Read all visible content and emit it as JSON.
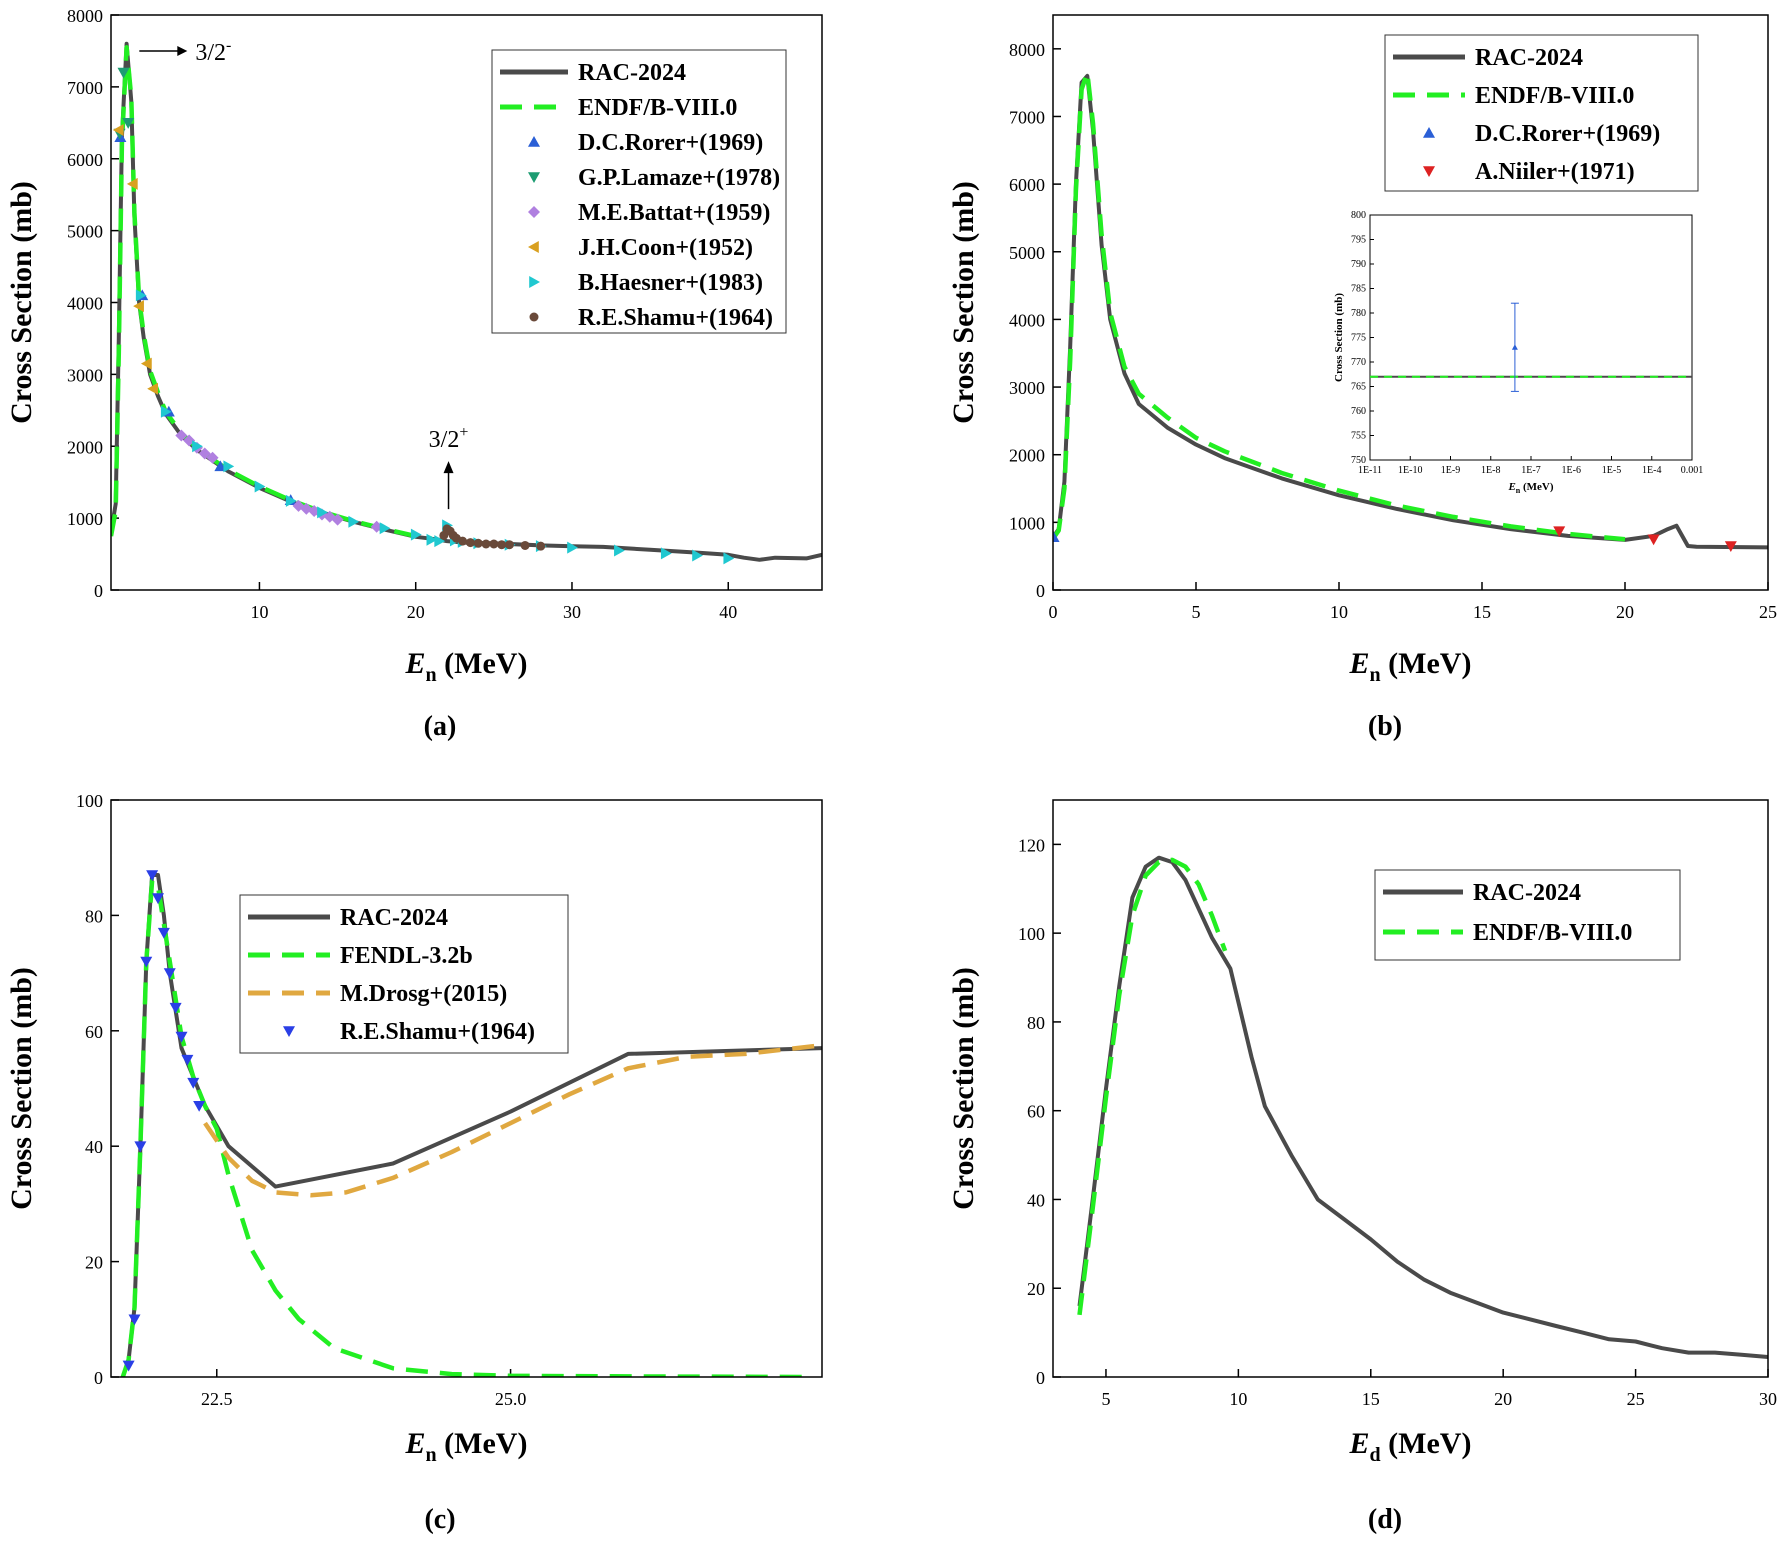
{
  "chart_data": [
    {
      "id": "a",
      "type": "line",
      "panel_label": "(a)",
      "xlabel_main": "E",
      "xlabel_sub": "n",
      "xlabel_unit": " (MeV)",
      "ylabel": "Cross Section (mb)",
      "xlim": [
        0.5,
        46
      ],
      "ylim": [
        0,
        8000
      ],
      "xticks": [
        10,
        20,
        30,
        40
      ],
      "yticks": [
        0,
        1000,
        2000,
        3000,
        4000,
        5000,
        6000,
        7000,
        8000
      ],
      "annotations": [
        {
          "text": "3/2",
          "sup": "-",
          "x": 1.8,
          "y": 7500
        },
        {
          "text": "3/2",
          "sup": "+",
          "x": 22.1,
          "y": 1960
        }
      ],
      "series": [
        {
          "name": "RAC-2024",
          "style": "solid",
          "color": "#4a4a4a",
          "x": [
            0.5,
            0.8,
            1.0,
            1.2,
            1.5,
            1.8,
            2.0,
            2.3,
            2.6,
            3.0,
            3.5,
            4.0,
            5.0,
            6.0,
            7.0,
            8.0,
            10.0,
            12.0,
            14.0,
            16.0,
            18.0,
            20.0,
            21.5,
            22.0,
            22.5,
            23.0,
            25.0,
            28.0,
            30.0,
            32.0,
            35.0,
            38.0,
            40.0,
            41.0,
            42.0,
            43.0,
            45.0,
            46.0
          ],
          "y": [
            800,
            1200,
            3500,
            6300,
            7600,
            6800,
            5200,
            4000,
            3500,
            3000,
            2700,
            2450,
            2150,
            1950,
            1800,
            1650,
            1420,
            1230,
            1080,
            950,
            840,
            740,
            700,
            680,
            670,
            660,
            650,
            620,
            610,
            600,
            560,
            520,
            490,
            450,
            420,
            450,
            440,
            490
          ]
        },
        {
          "name": "ENDF/B-VIII.0",
          "style": "dash",
          "color": "#22ee22",
          "x": [
            0.5,
            0.8,
            1.0,
            1.2,
            1.5,
            1.8,
            2.0,
            2.3,
            2.6,
            3.0,
            3.5,
            4.0,
            5.0,
            6.0,
            7.0,
            8.0,
            10.0,
            12.0,
            14.0,
            16.0,
            18.0,
            20.0,
            21.0
          ],
          "y": [
            750,
            1100,
            3300,
            6200,
            7550,
            6850,
            5250,
            4050,
            3550,
            3050,
            2750,
            2480,
            2180,
            1980,
            1820,
            1670,
            1440,
            1250,
            1090,
            960,
            850,
            750,
            720
          ]
        }
      ],
      "points": [
        {
          "name": "D.C.Rorer+(1969)",
          "marker": "triangle-up",
          "color": "#2a5fd6",
          "x": [
            1.1,
            2.5,
            4.2,
            7.5,
            12.0
          ],
          "y": [
            6300,
            4100,
            2480,
            1720,
            1250
          ]
        },
        {
          "name": "G.P.Lamaze+(1978)",
          "marker": "triangle-down",
          "color": "#1d9c72",
          "x": [
            1.05,
            1.3,
            1.6
          ],
          "y": [
            6350,
            7200,
            6500
          ]
        },
        {
          "name": "M.E.Battat+(1959)",
          "marker": "diamond",
          "color": "#b080e0",
          "x": [
            5.0,
            5.5,
            6.0,
            6.5,
            7.0,
            12.5,
            13.0,
            13.5,
            14.0,
            14.5,
            15.0,
            17.5
          ],
          "y": [
            2150,
            2080,
            1980,
            1900,
            1840,
            1170,
            1130,
            1100,
            1050,
            1020,
            980,
            880
          ]
        },
        {
          "name": "J.H.Coon+(1952)",
          "marker": "triangle-left",
          "color": "#d9a020",
          "x": [
            1.0,
            1.9,
            2.3,
            2.8,
            3.2
          ],
          "y": [
            6400,
            5650,
            3950,
            3150,
            2800
          ]
        },
        {
          "name": "B.Haesner+(1983)",
          "marker": "triangle-right",
          "color": "#20c8d0",
          "x": [
            2.4,
            4.0,
            6.0,
            8.0,
            10.0,
            12.0,
            14.0,
            16.0,
            18.0,
            20.0,
            21.0,
            21.5,
            22.0,
            22.5,
            23.0,
            24.0,
            26.0,
            28.0,
            30.0,
            33.0,
            36.0,
            38.0,
            40.0
          ],
          "y": [
            4100,
            2480,
            2000,
            1720,
            1440,
            1240,
            1080,
            950,
            860,
            770,
            700,
            680,
            900,
            690,
            670,
            650,
            630,
            610,
            590,
            550,
            510,
            480,
            440
          ]
        },
        {
          "name": "R.E.Shamu+(1964)",
          "marker": "circle",
          "color": "#6a4a3a",
          "x": [
            21.8,
            22.0,
            22.2,
            22.4,
            22.6,
            23.0,
            23.5,
            24.0,
            24.5,
            25.0,
            25.5,
            26.0,
            27.0,
            28.0
          ],
          "y": [
            760,
            850,
            820,
            760,
            720,
            680,
            660,
            650,
            640,
            640,
            630,
            630,
            620,
            610
          ]
        }
      ]
    },
    {
      "id": "b",
      "type": "line",
      "panel_label": "(b)",
      "xlabel_main": "E",
      "xlabel_sub": "n",
      "xlabel_unit": " (MeV)",
      "ylabel": "Cross Section (mb)",
      "xlim": [
        0,
        25
      ],
      "ylim": [
        0,
        8500
      ],
      "xticks": [
        0,
        5,
        10,
        15,
        20,
        25
      ],
      "yticks": [
        0,
        1000,
        2000,
        3000,
        4000,
        5000,
        6000,
        7000,
        8000
      ],
      "series": [
        {
          "name": "RAC-2024",
          "style": "solid",
          "color": "#4a4a4a",
          "x": [
            0.0,
            0.2,
            0.4,
            0.6,
            0.8,
            1.0,
            1.2,
            1.4,
            1.7,
            2.0,
            2.5,
            3.0,
            4.0,
            5.0,
            6.0,
            8.0,
            10.0,
            12.0,
            14.0,
            16.0,
            18.0,
            20.0,
            21.0,
            21.5,
            21.8,
            22.0,
            22.2,
            22.5,
            25.0
          ],
          "y": [
            780,
            900,
            1600,
            3600,
            6000,
            7500,
            7600,
            6800,
            5100,
            4000,
            3200,
            2750,
            2400,
            2150,
            1950,
            1650,
            1400,
            1200,
            1030,
            900,
            800,
            740,
            800,
            900,
            950,
            800,
            650,
            640,
            630
          ]
        },
        {
          "name": "ENDF/B-VIII.0",
          "style": "dash",
          "color": "#22ee22",
          "x": [
            0.0,
            0.2,
            0.4,
            0.6,
            0.8,
            1.0,
            1.2,
            1.4,
            1.7,
            2.0,
            2.5,
            3.0,
            4.0,
            5.0,
            6.0,
            8.0,
            10.0,
            12.0,
            14.0,
            16.0,
            18.0,
            20.0
          ],
          "y": [
            760,
            880,
            1500,
            3400,
            5900,
            7400,
            7650,
            6900,
            5250,
            4100,
            3300,
            2900,
            2550,
            2250,
            2050,
            1730,
            1470,
            1250,
            1080,
            940,
            830,
            750
          ]
        }
      ],
      "points": [
        {
          "name": "D.C.Rorer+(1969)",
          "marker": "triangle-up",
          "color": "#2a5fd6",
          "x": [
            0.02
          ],
          "y": [
            780
          ]
        },
        {
          "name": "A.Niiler+(1971)",
          "marker": "triangle-down",
          "color": "#dd2222",
          "x": [
            17.7,
            21.0,
            23.7
          ],
          "y": [
            870,
            750,
            650
          ]
        }
      ],
      "inset": {
        "xlabel_main": "E",
        "xlabel_sub": "n",
        "xlabel_unit": " (MeV)",
        "ylabel": "Cross Section (mb)",
        "ylim": [
          750,
          800
        ],
        "yticks": [
          750,
          755,
          760,
          765,
          770,
          775,
          780,
          785,
          790,
          795,
          800
        ],
        "xtick_labels": [
          "1E-11",
          "1E-10",
          "1E-9",
          "1E-8",
          "1E-7",
          "1E-6",
          "1E-5",
          "1E-4",
          "0.001"
        ],
        "line_value": 767,
        "point": {
          "log_x": -7.4,
          "y": 773,
          "err": 9
        }
      }
    },
    {
      "id": "c",
      "type": "line",
      "panel_label": "(c)",
      "xlabel_main": "E",
      "xlabel_sub": "n",
      "xlabel_unit": " (MeV)",
      "ylabel": "Cross Section (mb)",
      "xlim": [
        21.6,
        27.65
      ],
      "ylim": [
        0,
        100
      ],
      "xticks": [
        22.5,
        25.0
      ],
      "xtick_labels": [
        "22.5",
        "25.0"
      ],
      "yticks": [
        0,
        20,
        40,
        60,
        80,
        100
      ],
      "series": [
        {
          "name": "RAC-2024",
          "style": "solid",
          "color": "#4a4a4a",
          "x": [
            21.7,
            21.75,
            21.8,
            21.85,
            21.9,
            21.95,
            22.0,
            22.05,
            22.1,
            22.2,
            22.3,
            22.4,
            22.6,
            23.0,
            24.0,
            25.0,
            26.0,
            27.65
          ],
          "y": [
            0,
            3,
            12,
            40,
            72,
            87,
            87,
            80,
            70,
            57,
            52,
            47,
            40,
            33,
            37,
            46,
            56,
            57
          ]
        },
        {
          "name": "FENDL-3.2b",
          "style": "dash",
          "color": "#22ee22",
          "x": [
            21.7,
            21.75,
            21.8,
            21.85,
            21.9,
            21.95,
            22.0,
            22.1,
            22.2,
            22.3,
            22.4,
            22.5,
            22.6,
            22.8,
            23.0,
            23.2,
            23.5,
            24.0,
            24.5,
            25.0,
            26.0,
            27.5
          ],
          "y": [
            0,
            3,
            12,
            40,
            72,
            86,
            85,
            72,
            59,
            52,
            47,
            43,
            35,
            22,
            15,
            10,
            5,
            1.5,
            0.5,
            0.2,
            0.1,
            0
          ]
        },
        {
          "name": "M.Drosg+(2015)",
          "style": "dash",
          "color": "#e0a840",
          "x": [
            22.4,
            22.6,
            22.8,
            23.0,
            23.3,
            23.6,
            24.0,
            24.5,
            25.0,
            25.5,
            26.0,
            26.5,
            27.0,
            27.65
          ],
          "y": [
            44,
            38,
            34,
            32,
            31.5,
            32,
            34.5,
            39,
            44,
            49,
            53.5,
            55.5,
            56,
            57.5
          ]
        }
      ],
      "points": [
        {
          "name": "R.E.Shamu+(1964)",
          "marker": "triangle-down",
          "color": "#2a3fe6",
          "x": [
            21.75,
            21.8,
            21.85,
            21.9,
            21.95,
            22.0,
            22.05,
            22.1,
            22.15,
            22.2,
            22.25,
            22.3,
            22.35
          ],
          "y": [
            2,
            10,
            40,
            72,
            87,
            83,
            77,
            70,
            64,
            59,
            55,
            51,
            47
          ]
        }
      ]
    },
    {
      "id": "d",
      "type": "line",
      "panel_label": "(d)",
      "xlabel_main": "E",
      "xlabel_sub": "d",
      "xlabel_unit": " (MeV)",
      "ylabel": "Cross Section (mb)",
      "xlim": [
        3,
        30
      ],
      "ylim": [
        0,
        130
      ],
      "xticks": [
        5,
        10,
        15,
        20,
        25,
        30
      ],
      "yticks": [
        0,
        20,
        40,
        60,
        80,
        100,
        120
      ],
      "series": [
        {
          "name": "RAC-2024",
          "style": "solid",
          "color": "#4a4a4a",
          "x": [
            4.0,
            4.5,
            5.0,
            5.5,
            6.0,
            6.5,
            7.0,
            7.5,
            8.0,
            9.0,
            9.7,
            10.5,
            11.0,
            12.0,
            13.0,
            14.0,
            15.0,
            16.0,
            17.0,
            18.0,
            20.0,
            22.0,
            23.0,
            24.0,
            25.0,
            26.0,
            27.0,
            28.0,
            29.0,
            30.0
          ],
          "y": [
            16,
            40,
            65,
            88,
            108,
            115,
            117,
            116,
            112,
            99,
            92,
            72,
            61,
            50,
            40,
            35.5,
            31,
            26,
            22,
            19,
            14.5,
            11.5,
            10,
            8.5,
            8,
            6.5,
            5.5,
            5.5,
            5,
            4.5
          ]
        },
        {
          "name": "ENDF/B-VIII.0",
          "style": "dash",
          "color": "#22ee22",
          "x": [
            4.0,
            4.5,
            5.0,
            5.5,
            6.0,
            6.5,
            7.0,
            7.5,
            8.0,
            8.5,
            9.0,
            9.5
          ],
          "y": [
            14,
            38,
            63,
            86,
            104,
            113,
            116,
            116.5,
            115,
            111,
            104,
            96
          ]
        }
      ]
    }
  ]
}
